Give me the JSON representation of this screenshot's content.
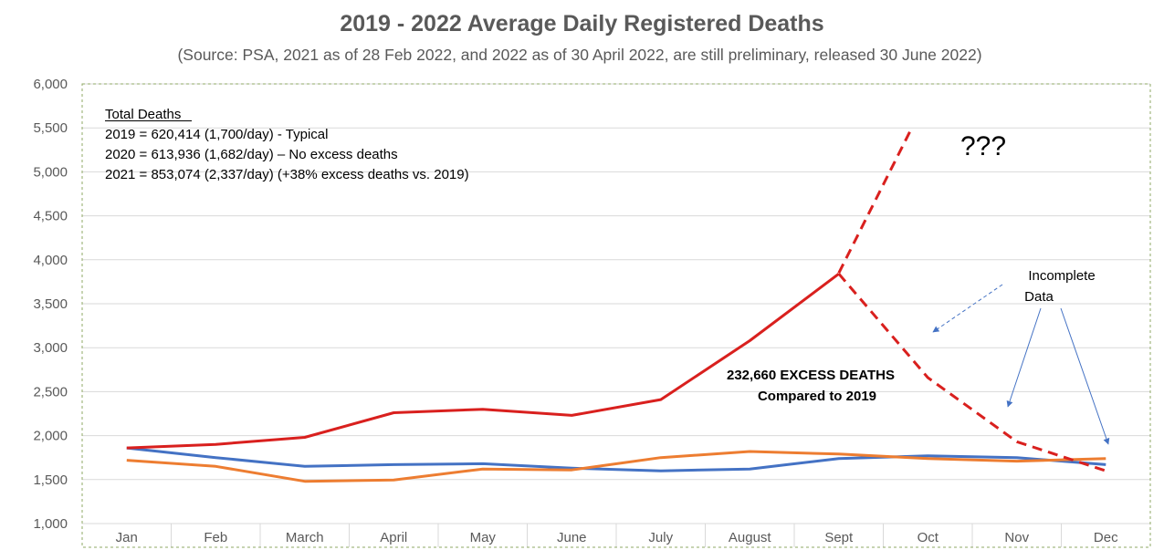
{
  "chart_data": {
    "type": "line",
    "title": "2019 - 2022 Average Daily Registered Deaths",
    "subtitle": "(Source: PSA, 2021 as of 28 Feb 2022, and 2022 as of 30 April 2022, are still preliminary, released 30 June 2022)",
    "xlabel": "",
    "ylabel": "",
    "categories": [
      "Jan",
      "Feb",
      "March",
      "April",
      "May",
      "June",
      "July",
      "August",
      "Sept",
      "Oct",
      "Nov",
      "Dec"
    ],
    "ylim": [
      1000,
      6000
    ],
    "y_ticks": [
      "1,000",
      "1,500",
      "2,000",
      "2,500",
      "3,000",
      "3,500",
      "4,000",
      "4,500",
      "5,000",
      "5,500",
      "6,000"
    ],
    "grid": "horizontal",
    "legend": "none",
    "series": [
      {
        "values": [
          1860,
          1750,
          1650,
          1670,
          1680,
          1630,
          1600,
          1620,
          1740,
          1770,
          1750,
          1670
        ],
        "color": "#4472C4",
        "style": "solid"
      },
      {
        "values": [
          1720,
          1650,
          1480,
          1495,
          1620,
          1610,
          1750,
          1820,
          1790,
          1740,
          1710,
          1740
        ],
        "color": "#ED7D31",
        "style": "solid"
      },
      {
        "values": [
          1860,
          1900,
          1980,
          2260,
          2300,
          2230,
          2410,
          3080,
          3840,
          null,
          null,
          null
        ],
        "color": "#D9201E",
        "style": "solid"
      },
      {
        "values": [
          null,
          null,
          null,
          null,
          null,
          null,
          null,
          null,
          3840,
          2660,
          1930,
          1600
        ],
        "color": "#D9201E",
        "style": "dashed"
      },
      {
        "values": [
          null,
          null,
          null,
          null,
          null,
          null,
          null,
          null,
          3850,
          5460,
          null,
          null
        ],
        "color": "#D9201E",
        "style": "dashed",
        "ends_between": "Oct"
      }
    ],
    "annotations": {
      "totals_heading": "Total Deaths",
      "totals_lines": [
        "2019 = 620,414 (1,700/day) - Typical",
        "2020 = 613,936 (1,682/day) – No excess deaths",
        "2021 = 853,074 (2,337/day) (+38% excess deaths vs. 2019)"
      ],
      "question": "???",
      "excess_line1": "232,660 EXCESS DEATHS",
      "excess_line2": "Compared to 2019",
      "incomplete_line1": "Incomplete",
      "incomplete_line2": "Data"
    }
  }
}
